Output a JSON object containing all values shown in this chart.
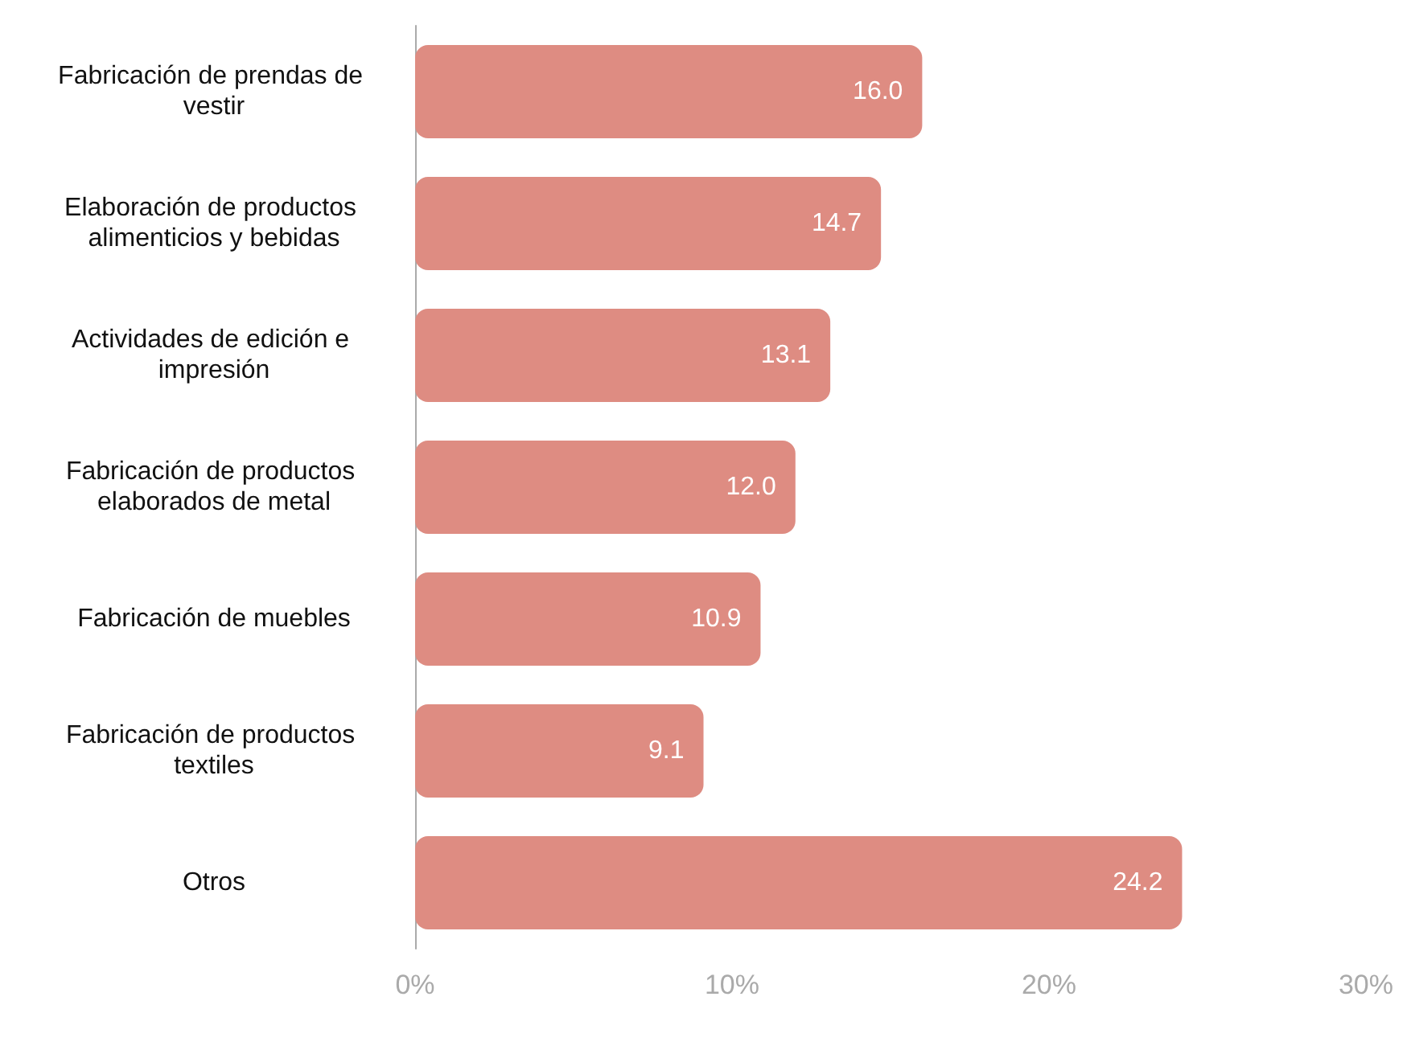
{
  "chart_data": {
    "type": "bar",
    "orientation": "horizontal",
    "categories": [
      "Fabricación de prendas de vestir",
      "Elaboración de productos alimenticios y bebidas",
      "Actividades de edición e impresión",
      "Fabricación de productos elaborados de metal",
      "Fabricación de muebles",
      "Fabricación de productos textiles",
      "Otros"
    ],
    "values": [
      16.0,
      14.7,
      13.1,
      12.0,
      10.9,
      9.1,
      24.2
    ],
    "value_labels": [
      "16.0",
      "14.7",
      "13.1",
      "12.0",
      "10.9",
      "9.1",
      "24.2"
    ],
    "color": "#de8c82",
    "xlim": [
      0,
      30
    ],
    "xticks": [
      {
        "value": 0,
        "label": "0%"
      },
      {
        "value": 10,
        "label": "10%"
      },
      {
        "value": 20,
        "label": "20%"
      },
      {
        "value": 30,
        "label": "30%"
      }
    ],
    "grid": false
  }
}
